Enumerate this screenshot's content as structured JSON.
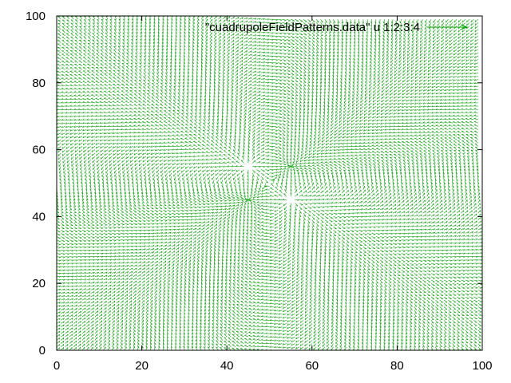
{
  "chart_data": {
    "type": "vector-field",
    "title": "",
    "xlabel": "",
    "ylabel": "",
    "xlim": [
      0,
      100
    ],
    "ylim": [
      0,
      100
    ],
    "x_ticks": [
      0,
      20,
      40,
      60,
      80,
      100
    ],
    "y_ticks": [
      0,
      20,
      40,
      60,
      80,
      100
    ],
    "grid": false,
    "legend_position": "top-right",
    "series": [
      {
        "name": "\"cuadrupoleFieldPatterns.data\" u 1:2:3:4",
        "color": "#00a000",
        "grid_x_range": [
          0,
          99
        ],
        "grid_y_range": [
          0,
          99
        ],
        "grid_step": 1,
        "charges": [
          {
            "x": 45,
            "y": 55,
            "sign": 1
          },
          {
            "x": 55,
            "y": 55,
            "sign": -1
          },
          {
            "x": 45,
            "y": 45,
            "sign": -1
          },
          {
            "x": 55,
            "y": 45,
            "sign": 1
          }
        ]
      }
    ]
  }
}
